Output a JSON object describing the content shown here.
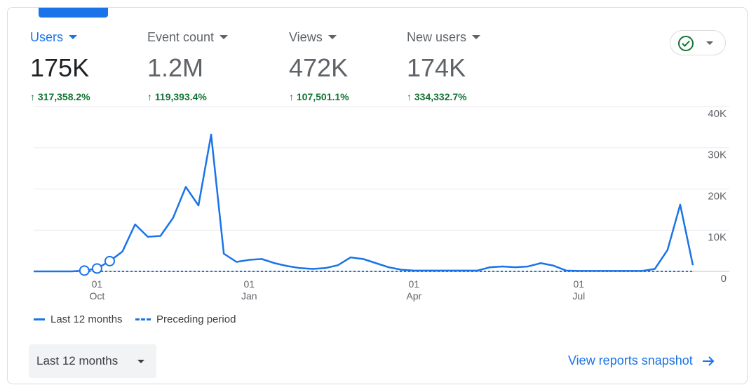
{
  "metrics": [
    {
      "label": "Users",
      "value": "175K",
      "change": "317,358.2%"
    },
    {
      "label": "Event count",
      "value": "1.2M",
      "change": "119,393.4%"
    },
    {
      "label": "Views",
      "value": "472K",
      "change": "107,501.1%"
    },
    {
      "label": "New users",
      "value": "174K",
      "change": "334,332.7%"
    }
  ],
  "chart_data": {
    "type": "line",
    "categories": [
      null,
      null,
      null,
      null,
      null,
      "01\nOct",
      null,
      null,
      null,
      null,
      null,
      null,
      null,
      null,
      null,
      null,
      null,
      "01\nJan",
      null,
      null,
      null,
      null,
      null,
      null,
      null,
      null,
      null,
      null,
      null,
      null,
      "01\nApr",
      null,
      null,
      null,
      null,
      null,
      null,
      null,
      null,
      null,
      null,
      null,
      null,
      "01\nJul",
      null,
      null,
      null,
      null,
      null,
      null,
      null,
      null,
      null
    ],
    "series": [
      {
        "name": "Last 12 months",
        "color": "#1a73e8",
        "dash": false,
        "values": [
          0,
          0,
          0,
          0,
          200,
          700,
          2500,
          4800,
          11400,
          8400,
          8600,
          13000,
          20500,
          16000,
          33200,
          4300,
          2300,
          2800,
          3000,
          2000,
          1300,
          800,
          600,
          800,
          1500,
          3400,
          3000,
          2000,
          1000,
          400,
          200,
          200,
          200,
          200,
          200,
          200,
          1000,
          1200,
          1000,
          1200,
          2000,
          1400,
          200,
          100,
          100,
          100,
          100,
          100,
          100,
          600,
          5200,
          16200,
          1500
        ],
        "markers": [
          4,
          5,
          6
        ]
      },
      {
        "name": "Preceding period",
        "color": "#1a73e8",
        "dash": true,
        "values": [
          0,
          0,
          0,
          0,
          0,
          0,
          0,
          0,
          0,
          0,
          0,
          0,
          0,
          0,
          0,
          0,
          0,
          0,
          0,
          0,
          0,
          0,
          0,
          0,
          0,
          0,
          0,
          0,
          0,
          0,
          0,
          0,
          0,
          0,
          0,
          0,
          0,
          0,
          0,
          0,
          0,
          0,
          0,
          0,
          0,
          0,
          0,
          0,
          0,
          0,
          0,
          0,
          0
        ]
      }
    ],
    "ylim": [
      0,
      40000
    ],
    "yticks": [
      0,
      {
        "value": 10000,
        "label": "10K"
      },
      {
        "value": 20000,
        "label": "20K"
      },
      {
        "value": 30000,
        "label": "30K"
      },
      {
        "value": 40000,
        "label": "40K"
      }
    ],
    "grid": true
  },
  "controls": {
    "range": "Last 12 months",
    "link": "View reports snapshot"
  }
}
